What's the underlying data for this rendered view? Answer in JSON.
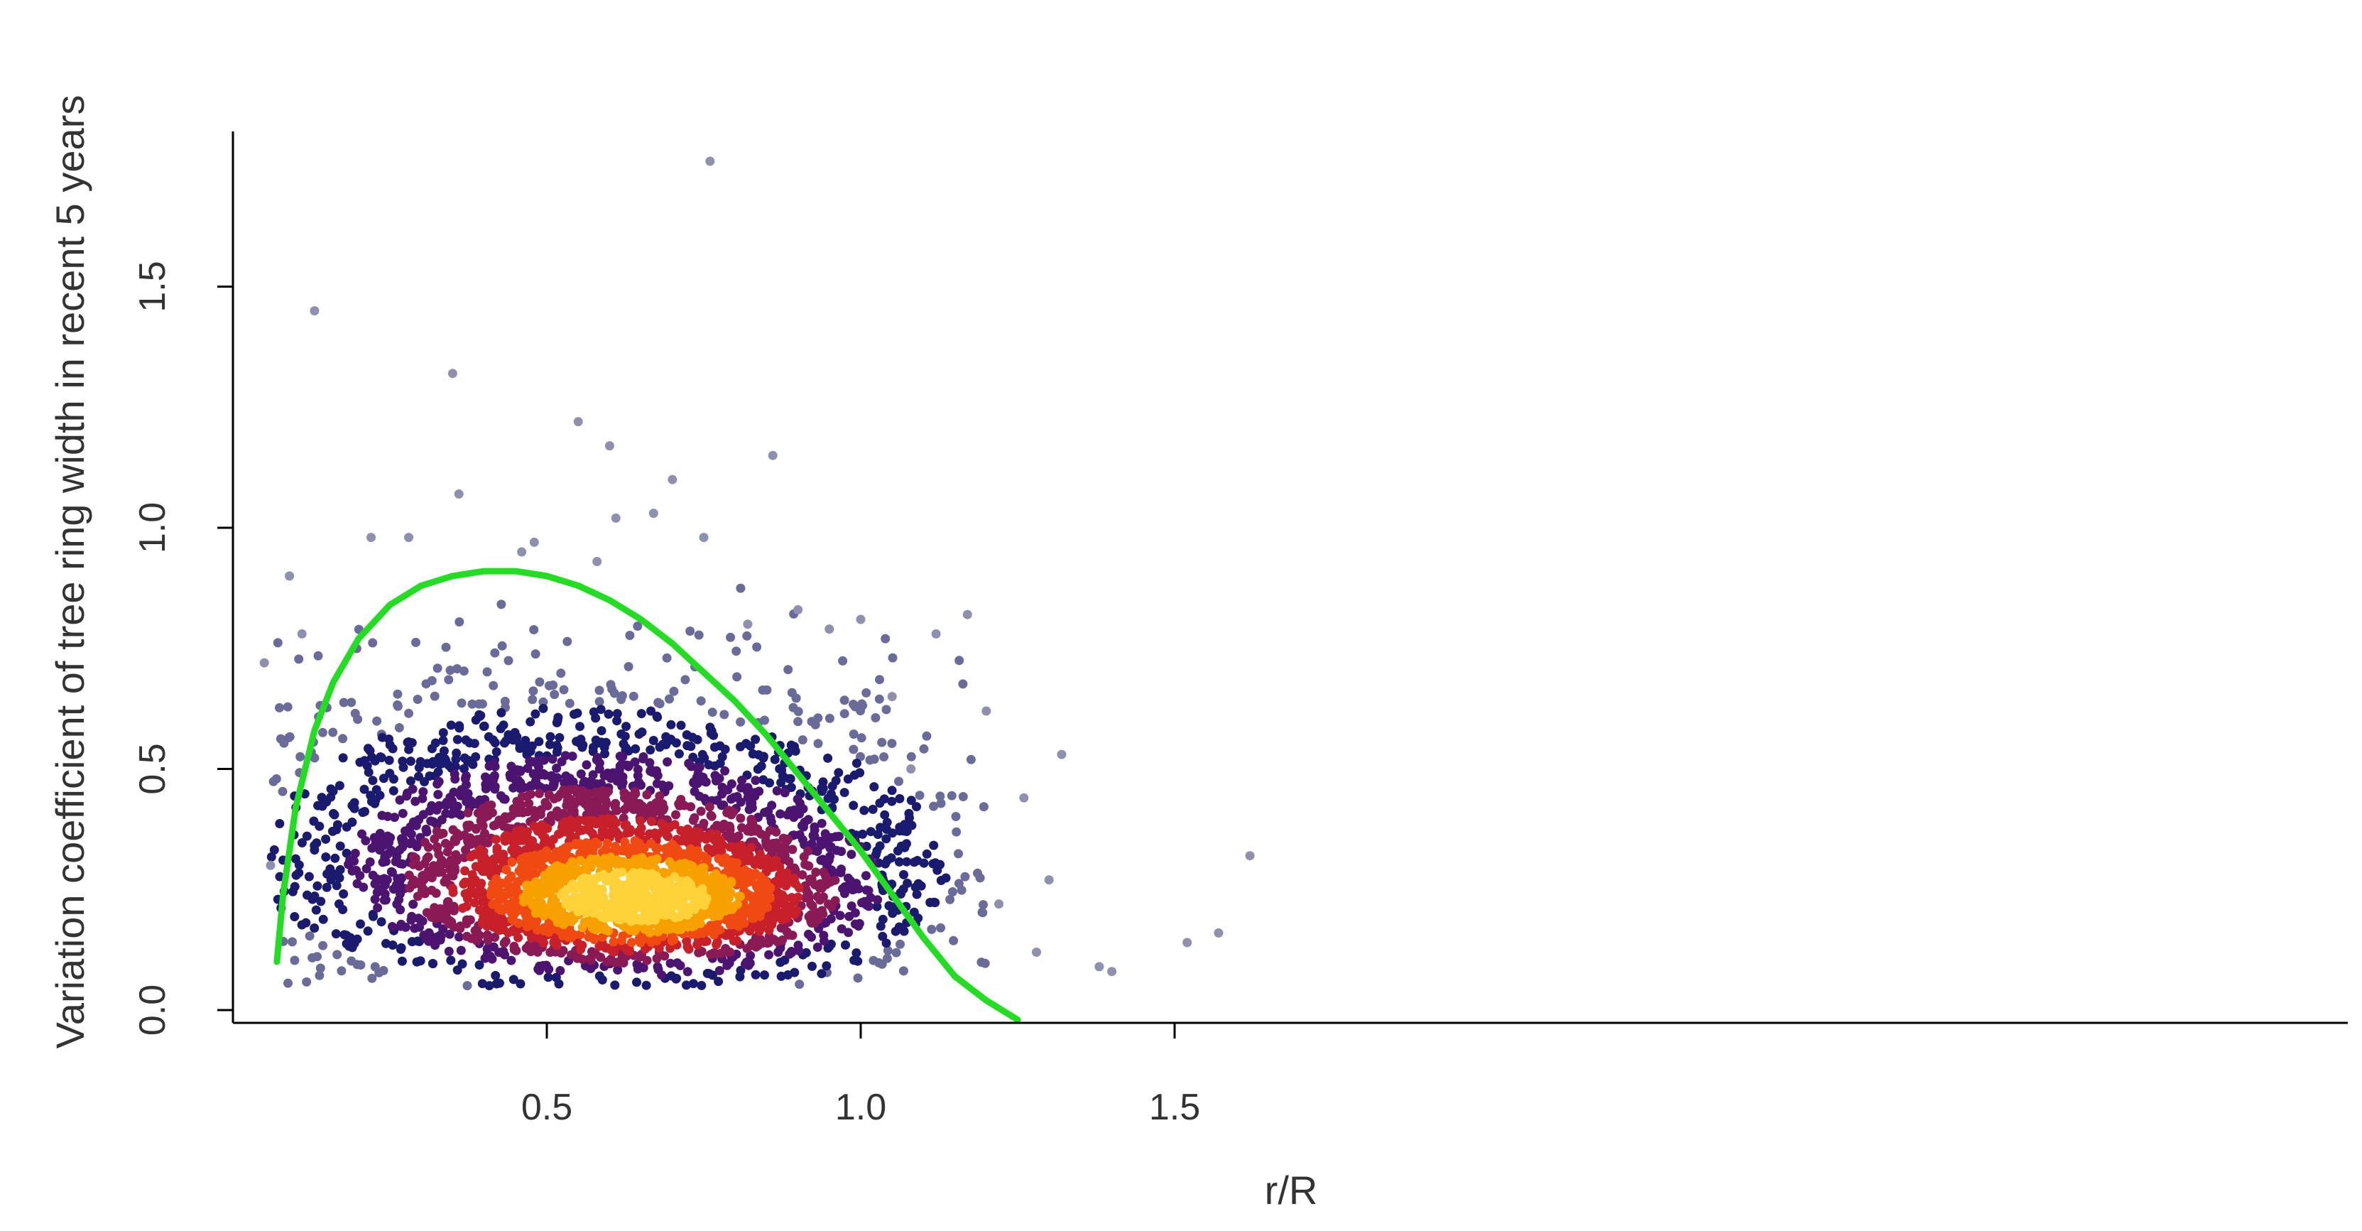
{
  "chart_data": {
    "type": "scatter",
    "title": "",
    "xlabel": "r/R",
    "ylabel": "Variation coefficient of tree ring width in recent 5 years",
    "xlim": [
      0.0,
      1.9
    ],
    "ylim": [
      -0.02,
      1.82
    ],
    "x_ticks": [
      0.5,
      1.0,
      1.5
    ],
    "x_tick_labels": [
      "0.5",
      "1.0",
      "1.5"
    ],
    "y_ticks": [
      0.0,
      0.5,
      1.0,
      1.5
    ],
    "y_tick_labels": [
      "0.0",
      "0.5",
      "1.0",
      "1.5"
    ],
    "grid": false,
    "legend": "none",
    "point_color_scale": [
      "#6b6b9a",
      "#1a1a6e",
      "#4b1470",
      "#8a1a55",
      "#c8202a",
      "#f04a12",
      "#f7a000",
      "#ffd23a"
    ],
    "point_color_meaning": "point density (low to high)",
    "fit_curve": {
      "color": "#22dd22",
      "x": [
        0.07,
        0.08,
        0.1,
        0.13,
        0.16,
        0.2,
        0.25,
        0.3,
        0.35,
        0.4,
        0.45,
        0.5,
        0.55,
        0.6,
        0.65,
        0.7,
        0.75,
        0.8,
        0.85,
        0.9,
        0.95,
        1.0,
        1.05,
        1.1,
        1.15,
        1.2,
        1.25
      ],
      "y": [
        0.1,
        0.24,
        0.42,
        0.58,
        0.68,
        0.77,
        0.84,
        0.88,
        0.9,
        0.91,
        0.91,
        0.9,
        0.88,
        0.85,
        0.81,
        0.76,
        0.7,
        0.64,
        0.57,
        0.49,
        0.41,
        0.33,
        0.24,
        0.15,
        0.07,
        0.02,
        -0.02
      ]
    },
    "outliers": {
      "x": [
        0.13,
        0.09,
        0.35,
        0.36,
        0.48,
        0.55,
        0.6,
        0.61,
        0.7,
        0.75,
        0.76,
        0.82,
        0.86,
        0.05,
        0.06,
        0.11,
        0.22,
        0.28,
        1.05,
        1.12,
        1.17,
        1.2,
        1.26,
        1.28,
        1.3,
        1.32,
        1.38,
        1.4,
        1.52,
        1.57,
        1.62,
        1.22,
        1.08,
        0.95,
        1.0,
        0.9,
        0.46,
        0.58,
        0.67
      ],
      "y": [
        1.45,
        0.9,
        1.32,
        1.07,
        0.97,
        1.22,
        1.17,
        1.02,
        1.1,
        0.98,
        1.76,
        0.8,
        1.15,
        0.72,
        0.3,
        0.78,
        0.98,
        0.98,
        0.65,
        0.78,
        0.82,
        0.62,
        0.44,
        0.12,
        0.27,
        0.53,
        0.09,
        0.08,
        0.14,
        0.16,
        0.32,
        0.22,
        0.5,
        0.79,
        0.81,
        0.83,
        0.95,
        0.93,
        1.03
      ]
    },
    "cloud_summary": {
      "core_center": [
        0.65,
        0.22
      ],
      "core_spread": [
        0.17,
        0.07
      ],
      "mid_center": [
        0.6,
        0.3
      ],
      "mid_spread": [
        0.25,
        0.12
      ],
      "outer_center": [
        0.55,
        0.38
      ],
      "outer_spread": [
        0.3,
        0.17
      ],
      "x_range": [
        0.06,
        1.2
      ],
      "y_range": [
        0.05,
        0.9
      ]
    }
  }
}
